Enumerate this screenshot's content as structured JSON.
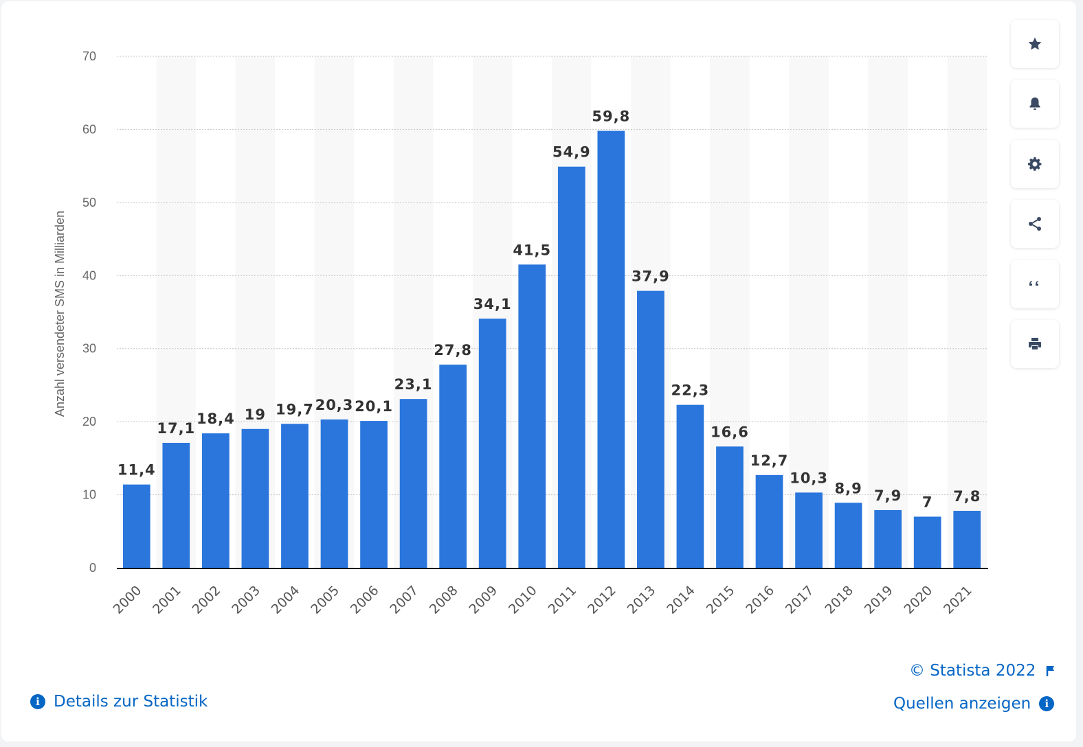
{
  "chart_data": {
    "type": "bar",
    "categories": [
      "2000",
      "2001",
      "2002",
      "2003",
      "2004",
      "2005",
      "2006",
      "2007",
      "2008",
      "2009",
      "2010",
      "2011",
      "2012",
      "2013",
      "2014",
      "2015",
      "2016",
      "2017",
      "2018",
      "2019",
      "2020",
      "2021"
    ],
    "values": [
      11.4,
      17.1,
      18.4,
      19,
      19.7,
      20.3,
      20.1,
      23.1,
      27.8,
      34.1,
      41.5,
      54.9,
      59.8,
      37.9,
      22.3,
      16.6,
      12.7,
      10.3,
      8.9,
      7.9,
      7,
      7.8
    ],
    "value_labels": [
      "11,4",
      "17,1",
      "18,4",
      "19",
      "19,7",
      "20,3",
      "20,1",
      "23,1",
      "27,8",
      "34,1",
      "41,5",
      "54,9",
      "59,8",
      "37,9",
      "22,3",
      "16,6",
      "12,7",
      "10,3",
      "8,9",
      "7,9",
      "7",
      "7,8"
    ],
    "ylabel": "Anzahl versendeter SMS in Milliarden",
    "xlabel": "",
    "ylim": [
      0,
      70
    ],
    "yticks": [
      0,
      10,
      20,
      30,
      40,
      50,
      60,
      70
    ],
    "grid": true,
    "bar_color": "#2a76dd"
  },
  "sidebar": {
    "buttons": [
      {
        "icon": "star-icon",
        "name": "favorite-button"
      },
      {
        "icon": "bell-icon",
        "name": "notification-button"
      },
      {
        "icon": "gear-icon",
        "name": "settings-button"
      },
      {
        "icon": "share-icon",
        "name": "share-button"
      },
      {
        "icon": "quote-icon",
        "name": "cite-button"
      },
      {
        "icon": "print-icon",
        "name": "print-button"
      }
    ]
  },
  "footer": {
    "copyright": "© Statista 2022",
    "details_link": "Details zur Statistik",
    "sources_link": "Quellen anzeigen"
  },
  "colors": {
    "accent": "#0666c5",
    "icon": "#3a4a63"
  }
}
